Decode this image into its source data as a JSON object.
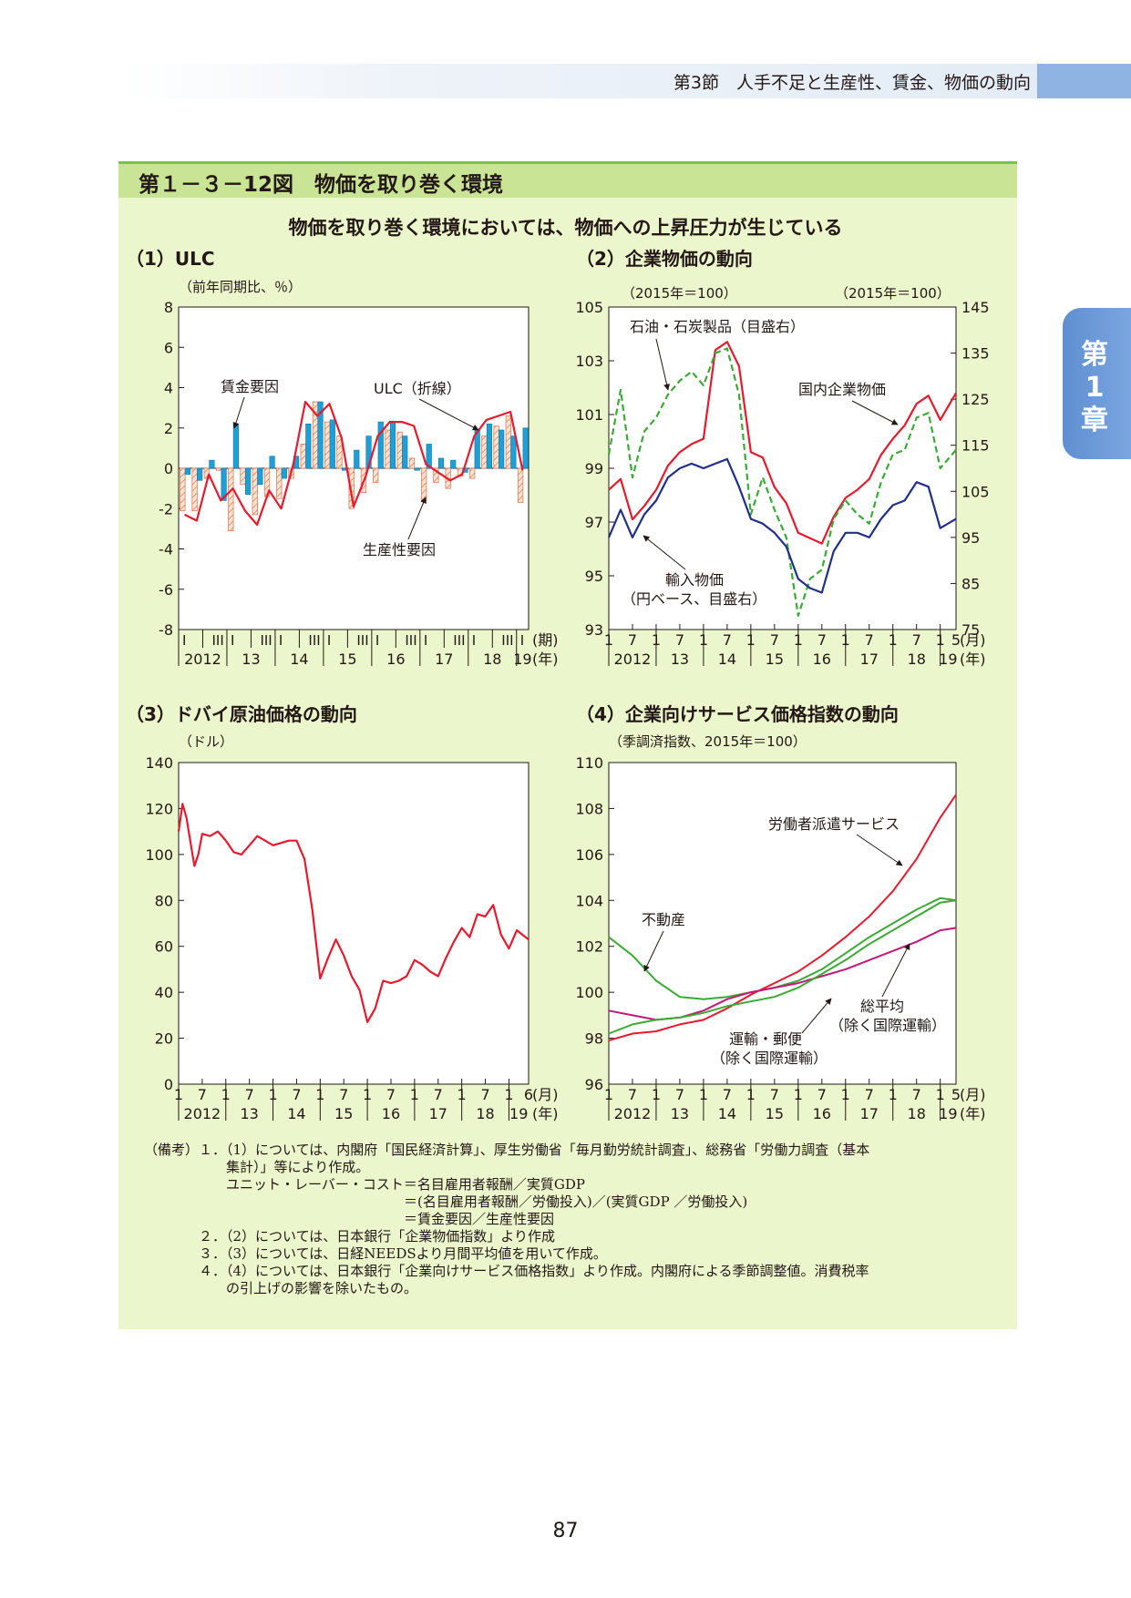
{
  "header": {
    "section": "第3節　人手不足と生産性、賃金、物価の動向"
  },
  "chapter_tab": {
    "line1": "第",
    "line2": "1",
    "line3": "章"
  },
  "figure": {
    "title": "第１－３－12図　物価を取り巻く環境",
    "subtitle": "物価を取り巻く環境においては、物価への上昇圧力が生じている"
  },
  "panels": {
    "p1": {
      "title": "（1）ULC",
      "unit": "（前年同期比、％）"
    },
    "p2": {
      "title": "（2）企業物価の動向",
      "unit_left": "（2015年＝100）",
      "unit_right": "（2015年＝100）"
    },
    "p3": {
      "title": "（3）ドバイ原油価格の動向",
      "unit": "（ドル）"
    },
    "p4": {
      "title": "（4）企業向けサービス価格指数の動向",
      "unit": "（季調済指数、2015年＝100）"
    }
  },
  "chart_data": [
    {
      "type": "bar",
      "title": "（1）ULC",
      "ylabel": "（前年同期比、％）",
      "ylim": [
        -8,
        8
      ],
      "yticks": [
        "8",
        "6",
        "4",
        "2",
        "0",
        "-2",
        "-4",
        "-6",
        "-8"
      ],
      "quarter_labels": [
        "I",
        "III",
        "I",
        "III",
        "I",
        "III",
        "I",
        "III",
        "I",
        "III",
        "I",
        "III",
        "I",
        "III",
        "I"
      ],
      "period_label": "(期)",
      "year_labels": [
        "2012",
        "13",
        "14",
        "15",
        "16",
        "17",
        "18",
        "19"
      ],
      "year_unit": "(年)",
      "annotations": [
        "賃金要因",
        "ULC（折線）",
        "生産性要因"
      ],
      "series": [
        {
          "name": "賃金要因",
          "color": "#1e9fd6",
          "values": [
            -0.3,
            -0.6,
            0.4,
            -1.6,
            2.2,
            -1.3,
            -0.8,
            0.6,
            -0.5,
            0.6,
            2.2,
            3.3,
            2.4,
            -0.1,
            0.9,
            1.6,
            2.3,
            2.3,
            1.6,
            -0.1,
            1.2,
            0.5,
            0.4,
            -0.2,
            1.9,
            2.2,
            1.9,
            1.6,
            2.0
          ]
        },
        {
          "name": "生産性要因",
          "color": "#e8a07e",
          "values": [
            -2.1,
            -2.1,
            -0.5,
            -0.1,
            -3.1,
            -0.8,
            -2.3,
            -1.4,
            -1.5,
            -0.5,
            1.2,
            3.3,
            2.3,
            1.6,
            -2.0,
            -1.2,
            -0.7,
            1.9,
            1.8,
            0.5,
            -1.6,
            -0.7,
            -1.0,
            -0.4,
            -0.5,
            1.6,
            2.1,
            2.6,
            -1.7
          ]
        },
        {
          "name": "ULC",
          "color": "#e8192d",
          "values": [
            -2.3,
            -2.6,
            -0.3,
            -1.6,
            -1.0,
            -2.1,
            -2.8,
            -1.1,
            -2.0,
            0.2,
            3.3,
            2.6,
            3.2,
            1.5,
            -1.9,
            -0.4,
            1.6,
            2.3,
            2.3,
            2.1,
            0.2,
            -0.2,
            -0.6,
            -0.3,
            1.6,
            2.4,
            2.6,
            2.8,
            -0.1
          ]
        }
      ]
    },
    {
      "type": "line",
      "title": "（2）企業物価の動向",
      "ylabel": "（2015年＝100）",
      "y2label": "（2015年＝100）",
      "ylim": [
        93,
        105
      ],
      "y2lim": [
        75,
        145
      ],
      "yticks": [
        "105",
        "103",
        "101",
        "99",
        "97",
        "95",
        "93"
      ],
      "y2ticks": [
        "145",
        "135",
        "125",
        "115",
        "105",
        "95",
        "85",
        "75"
      ],
      "month_labels": [
        "1",
        "7",
        "1",
        "7",
        "1",
        "7",
        "1",
        "7",
        "1",
        "7",
        "1",
        "7",
        "1",
        "7",
        "1",
        "5"
      ],
      "month_unit": "(月)",
      "year_labels": [
        "2012",
        "13",
        "14",
        "15",
        "16",
        "17",
        "18",
        "19"
      ],
      "year_unit": "(年)",
      "x": [
        "2012-01",
        "2012-04",
        "2012-07",
        "2012-10",
        "2013-01",
        "2013-04",
        "2013-07",
        "2013-10",
        "2014-01",
        "2014-04",
        "2014-07",
        "2014-10",
        "2015-01",
        "2015-04",
        "2015-07",
        "2015-10",
        "2016-01",
        "2016-04",
        "2016-07",
        "2016-10",
        "2017-01",
        "2017-04",
        "2017-07",
        "2017-10",
        "2018-01",
        "2018-04",
        "2018-07",
        "2018-10",
        "2019-01",
        "2019-05"
      ],
      "series": [
        {
          "name": "国内企業物価",
          "axis": "left",
          "color": "#e8192d",
          "values": [
            98.2,
            98.6,
            97.1,
            97.6,
            98.2,
            99.1,
            99.6,
            99.9,
            100.1,
            103.4,
            103.7,
            102.8,
            99.6,
            99.4,
            98.3,
            97.7,
            96.6,
            96.4,
            96.2,
            97.2,
            97.9,
            98.2,
            98.6,
            99.5,
            100.1,
            100.6,
            101.4,
            101.7,
            100.8,
            101.8
          ]
        },
        {
          "name": "石油・石炭製品（目盛右）",
          "axis": "right",
          "color": "#3aaa35",
          "values": [
            113,
            127,
            108,
            118,
            121,
            126,
            129,
            131,
            128,
            135,
            136,
            126,
            100,
            108,
            101,
            95,
            78,
            86,
            88,
            99,
            103,
            100,
            98,
            107,
            113,
            114,
            121,
            122,
            110,
            114
          ]
        },
        {
          "name": "輸入物価（円ベース、目盛右）",
          "axis": "right",
          "color": "#1f2f8a",
          "values": [
            95,
            101,
            95,
            100,
            103,
            108,
            110,
            111,
            110,
            111,
            112,
            106,
            99,
            98,
            96,
            93,
            86,
            84,
            83,
            92,
            96,
            96,
            95,
            99,
            102,
            103,
            107,
            106,
            97,
            99
          ]
        }
      ],
      "annotations": [
        "石油・石炭製品（目盛右）",
        "国内企業物価",
        "輸入物価",
        "（円ベース、目盛右）"
      ]
    },
    {
      "type": "line",
      "title": "（3）ドバイ原油価格の動向",
      "ylabel": "（ドル）",
      "ylim": [
        0,
        140
      ],
      "yticks": [
        "140",
        "120",
        "100",
        "80",
        "60",
        "40",
        "20",
        "0"
      ],
      "month_labels": [
        "1",
        "7",
        "1",
        "7",
        "1",
        "7",
        "1",
        "7",
        "1",
        "7",
        "1",
        "7",
        "1",
        "7",
        "1",
        "6"
      ],
      "month_unit": "(月)",
      "year_labels": [
        "2012",
        "13",
        "14",
        "15",
        "16",
        "17",
        "18",
        "19"
      ],
      "year_unit": "(年)",
      "x": [
        "2012-01",
        "2012-02",
        "2012-03",
        "2012-05",
        "2012-06",
        "2012-07",
        "2012-09",
        "2012-11",
        "2013-01",
        "2013-03",
        "2013-05",
        "2013-07",
        "2013-09",
        "2013-11",
        "2014-01",
        "2014-03",
        "2014-05",
        "2014-07",
        "2014-09",
        "2014-11",
        "2015-01",
        "2015-03",
        "2015-05",
        "2015-07",
        "2015-09",
        "2015-11",
        "2016-01",
        "2016-03",
        "2016-05",
        "2016-07",
        "2016-09",
        "2016-11",
        "2017-01",
        "2017-03",
        "2017-05",
        "2017-07",
        "2017-09",
        "2017-11",
        "2018-01",
        "2018-03",
        "2018-05",
        "2018-07",
        "2018-09",
        "2018-11",
        "2019-01",
        "2019-03",
        "2019-06"
      ],
      "series": [
        {
          "name": "ドバイ原油価格",
          "color": "#e8192d",
          "values": [
            110,
            122,
            116,
            95,
            100,
            109,
            108,
            110,
            106,
            101,
            100,
            104,
            108,
            106,
            104,
            105,
            106,
            106,
            98,
            76,
            46,
            55,
            63,
            56,
            47,
            41,
            27,
            33,
            45,
            44,
            45,
            47,
            54,
            52,
            49,
            47,
            55,
            62,
            68,
            64,
            74,
            73,
            78,
            65,
            59,
            67,
            63
          ]
        }
      ]
    },
    {
      "type": "line",
      "title": "（4）企業向けサービス価格指数の動向",
      "ylabel": "（季調済指数、2015年＝100）",
      "ylim": [
        96,
        110
      ],
      "yticks": [
        "110",
        "108",
        "106",
        "104",
        "102",
        "100",
        "98",
        "96"
      ],
      "month_labels": [
        "1",
        "7",
        "1",
        "7",
        "1",
        "7",
        "1",
        "7",
        "1",
        "7",
        "1",
        "7",
        "1",
        "7",
        "1",
        "5"
      ],
      "month_unit": "(月)",
      "year_labels": [
        "2012",
        "13",
        "14",
        "15",
        "16",
        "17",
        "18",
        "19"
      ],
      "year_unit": "(年)",
      "x": [
        "2012-01",
        "2012-07",
        "2013-01",
        "2013-07",
        "2014-01",
        "2014-07",
        "2015-01",
        "2015-07",
        "2016-01",
        "2016-07",
        "2017-01",
        "2017-07",
        "2018-01",
        "2018-07",
        "2019-01",
        "2019-05"
      ],
      "series": [
        {
          "name": "労働者派遣サービス",
          "color": "#e8192d",
          "values": [
            97.9,
            98.2,
            98.3,
            98.6,
            98.8,
            99.3,
            99.9,
            100.4,
            100.9,
            101.6,
            102.4,
            103.3,
            104.4,
            105.8,
            107.6,
            108.6
          ]
        },
        {
          "name": "不動産",
          "color": "#3aaa35",
          "values": [
            102.4,
            101.6,
            100.5,
            99.8,
            99.7,
            99.8,
            100.0,
            100.2,
            100.5,
            101.0,
            101.7,
            102.4,
            103.0,
            103.6,
            104.1,
            104.0
          ]
        },
        {
          "name": "総平均（除く国際運輸）",
          "color": "#c2187a",
          "values": [
            99.2,
            99.0,
            98.8,
            98.9,
            99.2,
            99.7,
            100.0,
            100.2,
            100.4,
            100.7,
            101.0,
            101.4,
            101.8,
            102.2,
            102.7,
            102.8
          ]
        },
        {
          "name": "運輸・郵便（除く国際運輸）",
          "color": "#3aaa35",
          "values": [
            98.2,
            98.6,
            98.8,
            98.9,
            99.1,
            99.4,
            99.6,
            99.8,
            100.2,
            100.8,
            101.4,
            102.1,
            102.7,
            103.3,
            103.9,
            104.0
          ]
        }
      ],
      "annotations": [
        "労働者派遣サービス",
        "不動産",
        "総平均",
        "（除く国際運輸）",
        "運輸・郵便",
        "（除く国際運輸）"
      ]
    }
  ],
  "notes": {
    "lines": [
      "（備考）１．（1）については、内閣府「国民経済計算」、厚生労働省「毎月勤労統計調査」、総務省「労働力調査（基本",
      "　　　　　　集計）」等により作成。",
      "　　　　　　ユニット・レーバー・コスト＝名目雇用者報酬／実質GDP",
      "　　　　　　　　　　　　　　　　　　　＝(名目雇用者報酬／労働投入)／(実質GDP ／労働投入)",
      "　　　　　　　　　　　　　　　　　　　＝賃金要因／生産性要因",
      "　　　　２．（2）については、日本銀行「企業物価指数」より作成",
      "　　　　３．（3）については、日経NEEDSより月間平均値を用いて作成。",
      "　　　　４．（4）については、日本銀行「企業向けサービス価格指数」より作成。内閣府による季節調整値。消費税率",
      "　　　　　　の引上げの影響を除いたもの。"
    ]
  },
  "page_number": "87"
}
